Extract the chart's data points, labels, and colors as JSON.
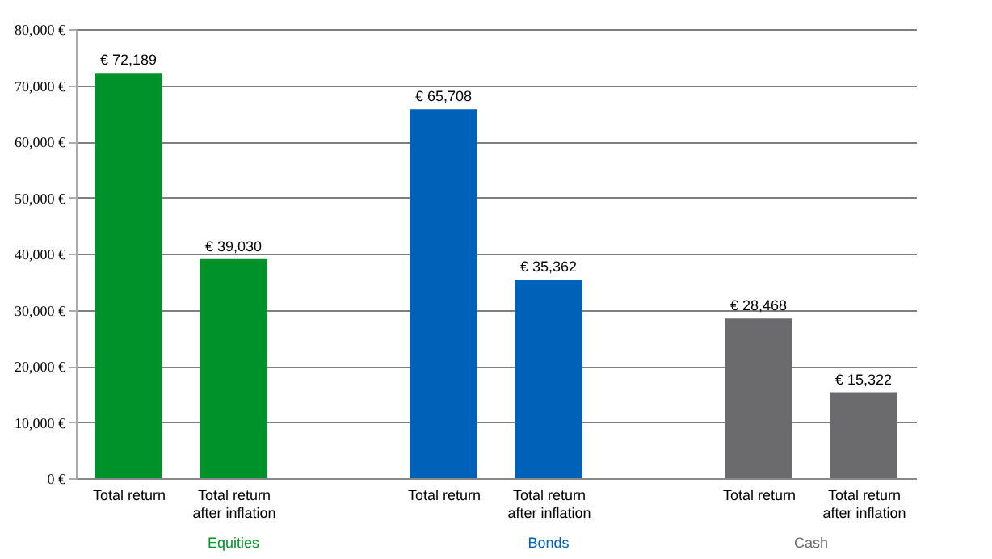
{
  "chart_data": {
    "type": "bar",
    "categories": [
      "Total return",
      "Total return after inflation",
      null,
      "Total return",
      "Total return after inflation",
      null,
      "Total return",
      "Total return after inflation"
    ],
    "series": [
      {
        "name": "Equities",
        "color": "#00922a",
        "values": [
          72189,
          39030,
          null,
          null,
          null,
          null,
          null,
          null
        ],
        "value_labels": [
          "€ 72,189",
          "€ 39,030",
          null,
          null,
          null,
          null,
          null,
          null
        ]
      },
      {
        "name": "Bonds",
        "color": "#0061b8",
        "values": [
          null,
          null,
          null,
          65708,
          35362,
          null,
          null,
          null
        ],
        "value_labels": [
          null,
          null,
          null,
          "€ 65,708",
          "€ 35,362",
          null,
          null,
          null
        ]
      },
      {
        "name": "Cash",
        "color": "#6b6b6e",
        "values": [
          null,
          null,
          null,
          null,
          null,
          null,
          28468,
          15322
        ],
        "value_labels": [
          null,
          null,
          null,
          null,
          null,
          null,
          "€ 28,468",
          "€ 15,322"
        ]
      }
    ],
    "ylim": [
      0,
      80000
    ],
    "yticks": [
      {
        "value": 0,
        "label": "0 €"
      },
      {
        "value": 10000,
        "label": "10,000 €"
      },
      {
        "value": 20000,
        "label": "20,000 €"
      },
      {
        "value": 30000,
        "label": "30,000 €"
      },
      {
        "value": 40000,
        "label": "40,000 €"
      },
      {
        "value": 50000,
        "label": "50,000 €"
      },
      {
        "value": 60000,
        "label": "60,000 €"
      },
      {
        "value": 70000,
        "label": "70,000 €"
      },
      {
        "value": 80000,
        "label": "80,000 €"
      }
    ],
    "grid": "y",
    "legend": false
  }
}
